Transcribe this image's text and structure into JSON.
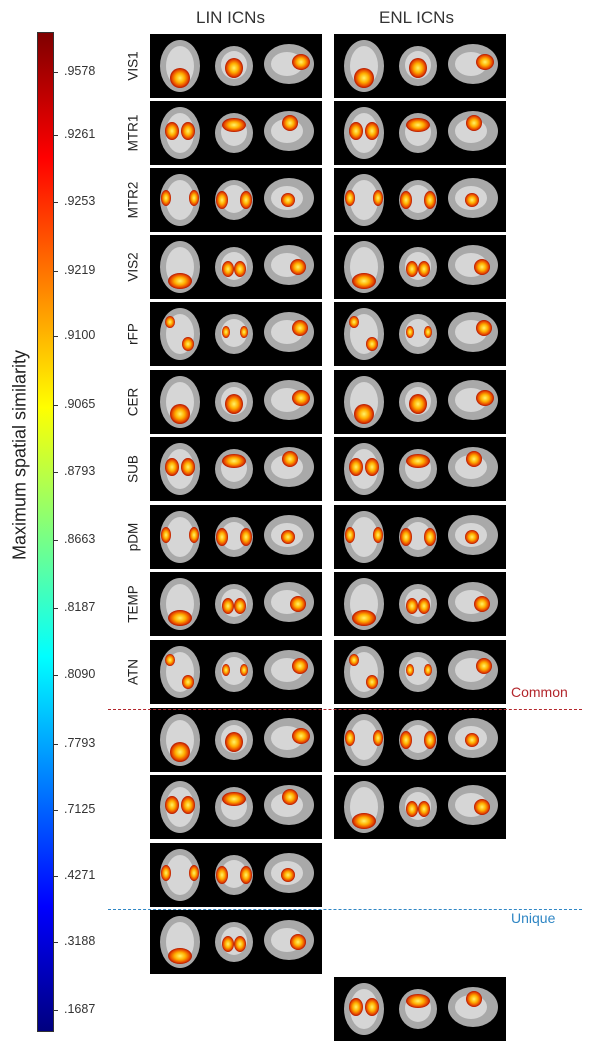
{
  "columns": {
    "lin": "LIN ICNs",
    "enl": "ENL ICNs"
  },
  "colorbar": {
    "label": "Maximum spatial similarity",
    "ticks": [
      ".9578",
      ".9261",
      ".9253",
      ".9219",
      ".9100",
      ".9065",
      ".8793",
      ".8663",
      ".8187",
      ".8090",
      ".7793",
      ".7125",
      ".4271",
      ".3188",
      ".1687"
    ],
    "stops": [
      "#00007f",
      "#0000ff",
      "#007fff",
      "#00ffff",
      "#7fff7f",
      "#ffff00",
      "#ff7f00",
      "#ff0000",
      "#7f0000"
    ]
  },
  "rows": [
    {
      "label": "VIS1",
      "lin": true,
      "enl": true
    },
    {
      "label": "MTR1",
      "lin": true,
      "enl": true
    },
    {
      "label": "MTR2",
      "lin": true,
      "enl": true
    },
    {
      "label": "VIS2",
      "lin": true,
      "enl": true
    },
    {
      "label": "rFP",
      "lin": true,
      "enl": true
    },
    {
      "label": "CER",
      "lin": true,
      "enl": true
    },
    {
      "label": "SUB",
      "lin": true,
      "enl": true
    },
    {
      "label": "pDM",
      "lin": true,
      "enl": true
    },
    {
      "label": "TEMP",
      "lin": true,
      "enl": true
    },
    {
      "label": "ATN",
      "lin": true,
      "enl": true
    },
    {
      "label": "",
      "lin": true,
      "enl": true
    },
    {
      "label": "",
      "lin": true,
      "enl": true
    },
    {
      "label": "",
      "lin": true,
      "enl": false
    },
    {
      "label": "",
      "lin": true,
      "enl": false
    },
    {
      "label": "",
      "lin": false,
      "enl": true
    }
  ],
  "dividers": {
    "common": "Common",
    "unique": "Unique"
  },
  "colors": {
    "common": "#b3262c",
    "unique": "#2f86c4"
  }
}
